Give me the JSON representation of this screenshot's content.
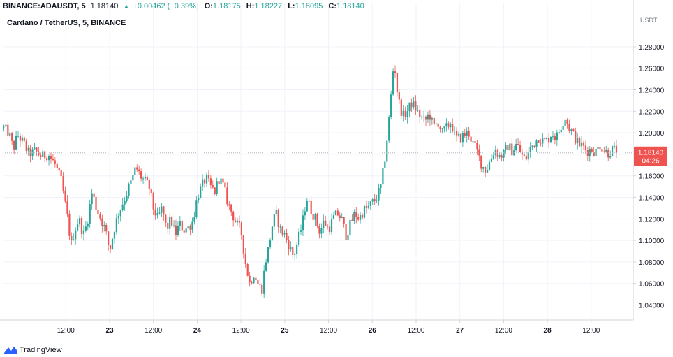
{
  "header": {
    "symbol": "BINANCE:ADAUSDT, 5",
    "last": "1.18140",
    "change": "+0.00462 (+0.39%)",
    "o_label": "O:",
    "o": "1.18175",
    "h_label": "H:",
    "h": "1.18227",
    "l_label": "L:",
    "l": "1.18095",
    "c_label": "C:",
    "c": "1.18140",
    "arrow_icon": "triangle-up-icon"
  },
  "subtitle": "Cardano / TetherUS, 5, BINANCE",
  "footer": {
    "brand": "TradingView",
    "logo_icon": "tradingview-logo-icon"
  },
  "price_tag": {
    "price": "1.18140",
    "countdown": "04:26",
    "color": "#ef5350"
  },
  "colors": {
    "up": "#26a69a",
    "down": "#ef5350",
    "grid": "#f0f3fa",
    "axis": "#d1d4dc"
  },
  "chart_data": {
    "type": "candlestick",
    "unit_label": "USDT",
    "ylim": [
      1.03,
      1.3
    ],
    "y_ticks": [
      "1.04000",
      "1.06000",
      "1.08000",
      "1.10000",
      "1.12000",
      "1.14000",
      "1.16000",
      "1.18000",
      "1.20000",
      "1.22000",
      "1.24000",
      "1.26000",
      "1.28000"
    ],
    "x_ticks": [
      {
        "label": "12:00",
        "t": 0.5
      },
      {
        "label": "23",
        "t": 1
      },
      {
        "label": "12:00",
        "t": 1.5
      },
      {
        "label": "24",
        "t": 2
      },
      {
        "label": "12:00",
        "t": 2.5
      },
      {
        "label": "25",
        "t": 3
      },
      {
        "label": "12:00",
        "t": 3.5
      },
      {
        "label": "26",
        "t": 4
      },
      {
        "label": "12:00",
        "t": 4.5
      },
      {
        "label": "27",
        "t": 5
      },
      {
        "label": "12:00",
        "t": 5.5
      },
      {
        "label": "28",
        "t": 6
      },
      {
        "label": "12:00",
        "t": 6.5
      }
    ],
    "x_range": [
      -0.22,
      6.98
    ],
    "last_price": 1.1814,
    "price_path": [
      [
        -0.22,
        1.205
      ],
      [
        -0.15,
        1.2
      ],
      [
        -0.1,
        1.185
      ],
      [
        -0.05,
        1.198
      ],
      [
        0.02,
        1.19
      ],
      [
        0.08,
        1.18
      ],
      [
        0.15,
        1.183
      ],
      [
        0.22,
        1.178
      ],
      [
        0.3,
        1.18
      ],
      [
        0.38,
        1.17
      ],
      [
        0.45,
        1.155
      ],
      [
        0.52,
        1.12
      ],
      [
        0.56,
        1.095
      ],
      [
        0.6,
        1.11
      ],
      [
        0.65,
        1.12
      ],
      [
        0.7,
        1.105
      ],
      [
        0.74,
        1.115
      ],
      [
        0.8,
        1.145
      ],
      [
        0.85,
        1.13
      ],
      [
        0.9,
        1.12
      ],
      [
        0.95,
        1.11
      ],
      [
        1.0,
        1.09
      ],
      [
        1.05,
        1.11
      ],
      [
        1.1,
        1.125
      ],
      [
        1.15,
        1.135
      ],
      [
        1.2,
        1.145
      ],
      [
        1.25,
        1.155
      ],
      [
        1.3,
        1.168
      ],
      [
        1.35,
        1.16
      ],
      [
        1.4,
        1.155
      ],
      [
        1.45,
        1.15
      ],
      [
        1.5,
        1.13
      ],
      [
        1.55,
        1.12
      ],
      [
        1.6,
        1.13
      ],
      [
        1.65,
        1.11
      ],
      [
        1.7,
        1.12
      ],
      [
        1.75,
        1.105
      ],
      [
        1.8,
        1.115
      ],
      [
        1.85,
        1.11
      ],
      [
        1.9,
        1.112
      ],
      [
        1.95,
        1.118
      ],
      [
        2.0,
        1.14
      ],
      [
        2.05,
        1.15
      ],
      [
        2.1,
        1.158
      ],
      [
        2.15,
        1.15
      ],
      [
        2.2,
        1.145
      ],
      [
        2.25,
        1.158
      ],
      [
        2.3,
        1.15
      ],
      [
        2.35,
        1.135
      ],
      [
        2.4,
        1.125
      ],
      [
        2.45,
        1.115
      ],
      [
        2.5,
        1.11
      ],
      [
        2.55,
        1.08
      ],
      [
        2.6,
        1.06
      ],
      [
        2.65,
        1.07
      ],
      [
        2.7,
        1.058
      ],
      [
        2.74,
        1.055
      ],
      [
        2.78,
        1.08
      ],
      [
        2.82,
        1.095
      ],
      [
        2.86,
        1.115
      ],
      [
        2.9,
        1.125
      ],
      [
        2.95,
        1.11
      ],
      [
        3.0,
        1.105
      ],
      [
        3.05,
        1.095
      ],
      [
        3.1,
        1.085
      ],
      [
        3.15,
        1.1
      ],
      [
        3.2,
        1.115
      ],
      [
        3.25,
        1.14
      ],
      [
        3.3,
        1.128
      ],
      [
        3.35,
        1.12
      ],
      [
        3.4,
        1.108
      ],
      [
        3.45,
        1.118
      ],
      [
        3.5,
        1.11
      ],
      [
        3.55,
        1.12
      ],
      [
        3.6,
        1.125
      ],
      [
        3.65,
        1.12
      ],
      [
        3.7,
        1.105
      ],
      [
        3.75,
        1.115
      ],
      [
        3.8,
        1.125
      ],
      [
        3.85,
        1.12
      ],
      [
        3.9,
        1.128
      ],
      [
        3.95,
        1.13
      ],
      [
        4.0,
        1.135
      ],
      [
        4.05,
        1.14
      ],
      [
        4.1,
        1.15
      ],
      [
        4.15,
        1.18
      ],
      [
        4.2,
        1.22
      ],
      [
        4.25,
        1.27
      ],
      [
        4.27,
        1.248
      ],
      [
        4.3,
        1.23
      ],
      [
        4.35,
        1.215
      ],
      [
        4.4,
        1.22
      ],
      [
        4.45,
        1.228
      ],
      [
        4.5,
        1.222
      ],
      [
        4.55,
        1.215
      ],
      [
        4.6,
        1.21
      ],
      [
        4.65,
        1.218
      ],
      [
        4.7,
        1.205
      ],
      [
        4.75,
        1.21
      ],
      [
        4.8,
        1.2
      ],
      [
        4.85,
        1.205
      ],
      [
        4.9,
        1.21
      ],
      [
        4.95,
        1.195
      ],
      [
        5.0,
        1.195
      ],
      [
        5.05,
        1.198
      ],
      [
        5.1,
        1.2
      ],
      [
        5.15,
        1.19
      ],
      [
        5.2,
        1.182
      ],
      [
        5.25,
        1.17
      ],
      [
        5.3,
        1.165
      ],
      [
        5.35,
        1.175
      ],
      [
        5.4,
        1.185
      ],
      [
        5.45,
        1.178
      ],
      [
        5.5,
        1.18
      ],
      [
        5.55,
        1.188
      ],
      [
        5.6,
        1.183
      ],
      [
        5.65,
        1.19
      ],
      [
        5.7,
        1.18
      ],
      [
        5.75,
        1.175
      ],
      [
        5.8,
        1.185
      ],
      [
        5.85,
        1.19
      ],
      [
        5.9,
        1.196
      ],
      [
        5.95,
        1.192
      ],
      [
        6.0,
        1.193
      ],
      [
        6.05,
        1.2
      ],
      [
        6.1,
        1.195
      ],
      [
        6.15,
        1.205
      ],
      [
        6.2,
        1.215
      ],
      [
        6.25,
        1.205
      ],
      [
        6.3,
        1.198
      ],
      [
        6.35,
        1.19
      ],
      [
        6.4,
        1.188
      ],
      [
        6.45,
        1.183
      ],
      [
        6.5,
        1.185
      ],
      [
        6.55,
        1.182
      ],
      [
        6.6,
        1.189
      ],
      [
        6.65,
        1.184
      ],
      [
        6.7,
        1.181
      ],
      [
        6.75,
        1.185
      ],
      [
        6.8,
        1.1814
      ]
    ]
  }
}
